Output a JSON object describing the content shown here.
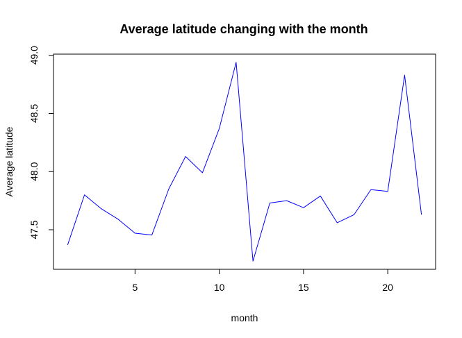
{
  "chart_data": {
    "type": "line",
    "title": "Average latitude changing with the month",
    "xlabel": "month",
    "ylabel": "Average latitude",
    "x": [
      1,
      2,
      3,
      4,
      5,
      6,
      7,
      8,
      9,
      10,
      11,
      12,
      13,
      14,
      15,
      16,
      17,
      18,
      19,
      20,
      21,
      22
    ],
    "series": [
      {
        "values": [
          47.37,
          47.8,
          47.68,
          47.59,
          47.47,
          47.455,
          47.85,
          48.13,
          47.99,
          48.37,
          48.94,
          47.23,
          47.73,
          47.75,
          47.69,
          47.79,
          47.56,
          47.63,
          47.845,
          47.83,
          48.83,
          47.63
        ],
        "color": "#0000ff"
      }
    ],
    "xlim": [
      0.16,
      22.84
    ],
    "ylim": [
      47.16,
      49.01
    ],
    "x_ticks": [
      5,
      10,
      15,
      20
    ],
    "y_ticks": [
      47.5,
      48.0,
      48.5,
      49.0
    ],
    "x_tick_labels": [
      "5",
      "10",
      "15",
      "20"
    ],
    "y_tick_labels": [
      "47.5",
      "48.0",
      "48.5",
      "49.0"
    ],
    "grid": false,
    "legend": "none"
  }
}
